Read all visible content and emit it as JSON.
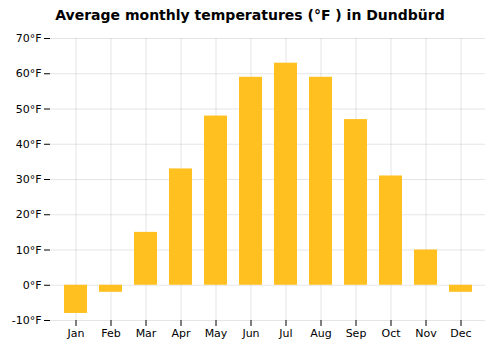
{
  "chart_data": {
    "type": "bar",
    "title": "Average monthly temperatures (°F ) in Dundbürd",
    "categories": [
      "Jan",
      "Feb",
      "Mar",
      "Apr",
      "May",
      "Jun",
      "Jul",
      "Aug",
      "Sep",
      "Oct",
      "Nov",
      "Dec"
    ],
    "values": [
      -8,
      -2,
      15,
      33,
      48,
      59,
      63,
      59,
      47,
      31,
      10,
      -2
    ],
    "color": "#FFC020",
    "ylim": [
      -10,
      70
    ],
    "yticks": [
      {
        "value": -10,
        "label": "-10°F"
      },
      {
        "value": 0,
        "label": "0°F"
      },
      {
        "value": 10,
        "label": "10°F"
      },
      {
        "value": 20,
        "label": "20°F"
      },
      {
        "value": 30,
        "label": "30°F"
      },
      {
        "value": 40,
        "label": "40°F"
      },
      {
        "value": 50,
        "label": "50°F"
      },
      {
        "value": 60,
        "label": "60°F"
      },
      {
        "value": 70,
        "label": "70°F"
      }
    ],
    "grid": true
  }
}
